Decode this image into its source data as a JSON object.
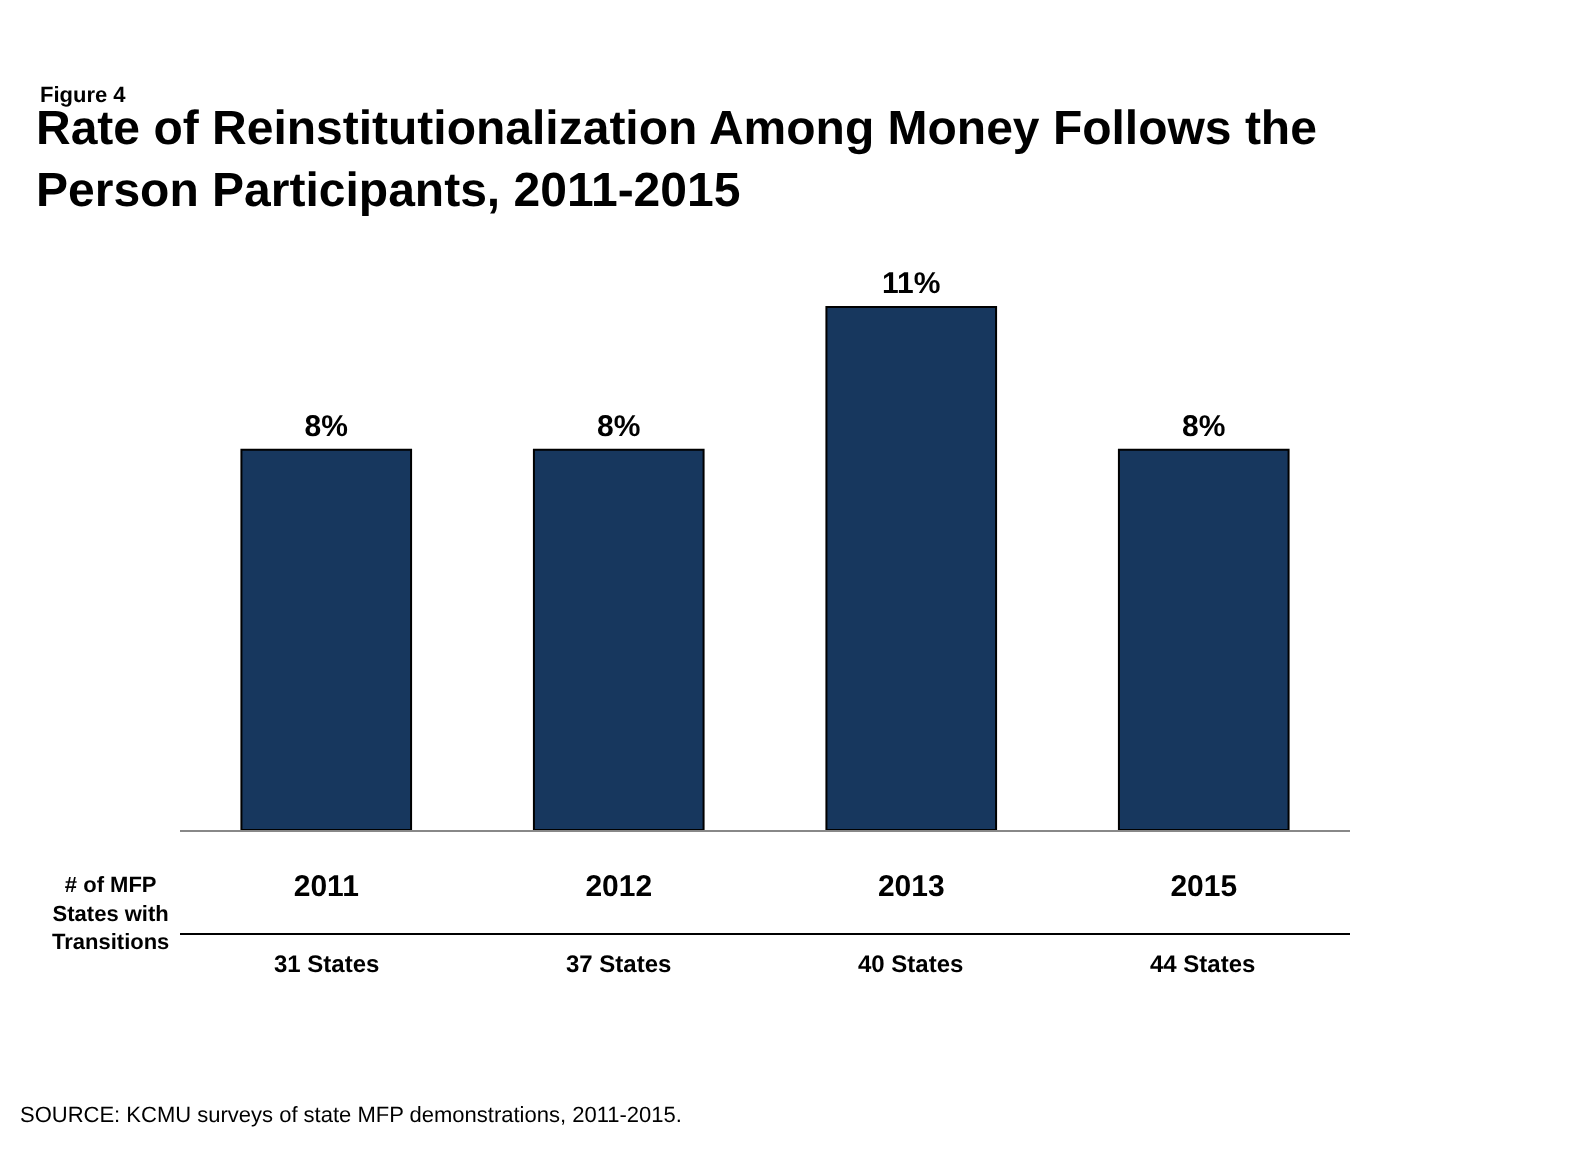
{
  "chart_data": {
    "type": "bar",
    "title": "Rate of Reinstitutionalization Among Money Follows the Person Participants, 2011-2015",
    "categories": [
      "2011",
      "2012",
      "2013",
      "2015"
    ],
    "values": [
      8,
      8,
      11,
      8
    ],
    "value_labels": [
      "8%",
      "8%",
      "11%",
      "8%"
    ],
    "color": "#17375e",
    "legend": false,
    "annotations": [
      "Figure 4",
      "# of MFP States with Transitions",
      "31 States",
      "37 States",
      "40 States",
      "44 States",
      "SOURCE: KCMU surveys of state MFP demonstrations, 2011-2015."
    ]
  }
}
